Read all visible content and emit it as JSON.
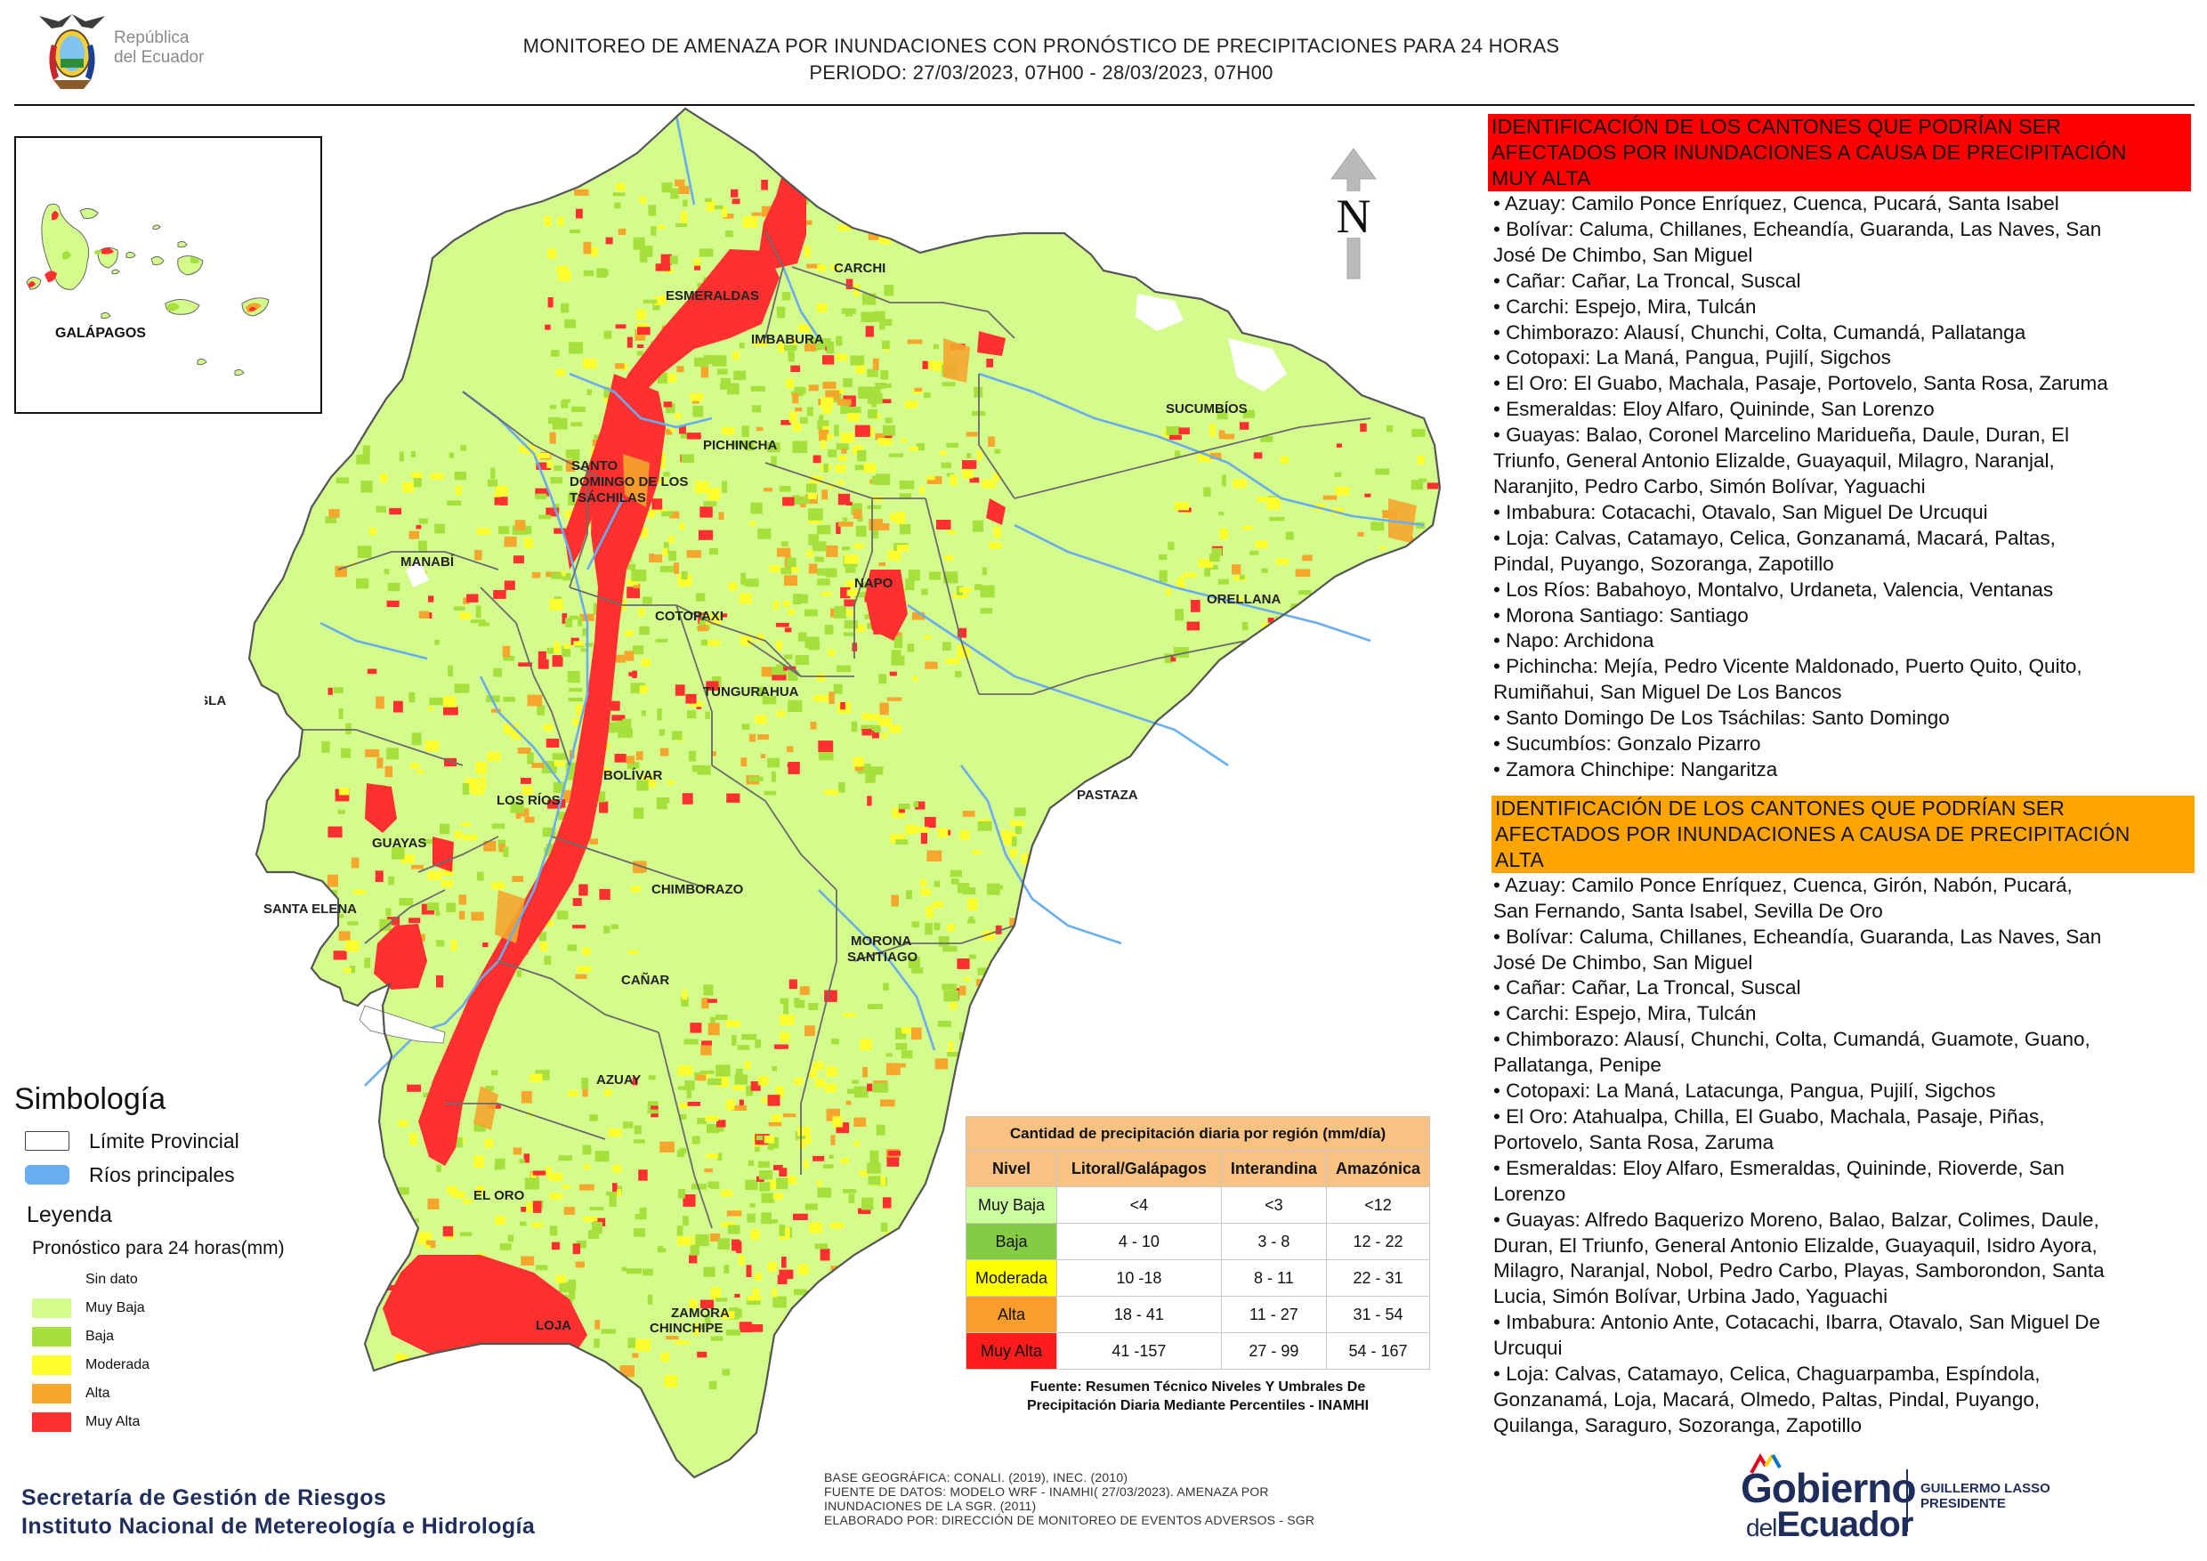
{
  "header": {
    "republic_line1": "República",
    "republic_line2": "del Ecuador",
    "title_line1": "MONITOREO DE AMENAZA POR INUNDACIONES  CON PRONÓSTICO DE  PRECIPITACIONES PARA 24 HORAS",
    "title_line2": "PERIODO: 27/03/2023, 07H00 - 28/03/2023, 07H00"
  },
  "inset": {
    "label": "GALÁPAGOS"
  },
  "north_arrow": {
    "label": "N"
  },
  "map_labels": {
    "carchi": "CARCHI",
    "esmeraldas": "ESMERALDAS",
    "imbabura": "IMBABURA",
    "sucumbios": "SUCUMBÍOS",
    "pichincha": "PICHINCHA",
    "santo_domingo_1": "SANTO",
    "santo_domingo_2": "DOMINGO DE LOS",
    "santo_domingo_3": "TSÁCHILAS",
    "manabi": "MANABÍ",
    "napo": "NAPO",
    "orellana": "ORELLANA",
    "cotopaxi": "COTOPAXI",
    "isla": "ISLA",
    "tungurahua": "TUNGURAHUA",
    "bolivar": "BOLÍVAR",
    "los_rios": "LOS RÍOS",
    "pastaza": "PASTAZA",
    "guayas": "GUAYAS",
    "santa_elena": "SANTA ELENA",
    "chimborazo": "CHIMBORAZO",
    "morona_1": "MORONA",
    "morona_2": "SANTIAGO",
    "canar": "CAÑAR",
    "azuay": "AZUAY",
    "el_oro": "EL ORO",
    "loja": "LOJA",
    "zamora_1": "ZAMORA",
    "zamora_2": "CHINCHIPE"
  },
  "simbologia": {
    "title": "Simbología",
    "limite": "Límite Provincial",
    "rios": "Ríos principales",
    "leyenda": "Leyenda",
    "pronostico": "Pronóstico para 24 horas(mm)",
    "classes": [
      {
        "label": "Sin dato",
        "color": "#ffffff"
      },
      {
        "label": "Muy Baja",
        "color": "#d3fc8c"
      },
      {
        "label": "Baja",
        "color": "#a6e03c"
      },
      {
        "label": "Moderada",
        "color": "#ffff2e"
      },
      {
        "label": "Alta",
        "color": "#f5a62d"
      },
      {
        "label": "Muy Alta",
        "color": "#ff3030"
      }
    ],
    "river_color": "#6aacf0"
  },
  "precip_table": {
    "caption": "Cantidad de precipitación diaria por región (mm/día)",
    "headers": [
      "Nivel",
      "Litoral/Galápagos",
      "Interandina",
      "Amazónica"
    ],
    "rows": [
      {
        "nivel": "Muy Baja",
        "litoral": "<4",
        "interandina": "<3",
        "amazonica": "<12",
        "color": "#ccffa0"
      },
      {
        "nivel": "Baja",
        "litoral": "4 - 10",
        "interandina": "3 - 8",
        "amazonica": "12 - 22",
        "color": "#84cc44"
      },
      {
        "nivel": "Moderada",
        "litoral": "10 -18",
        "interandina": "8 - 11",
        "amazonica": "22 - 31",
        "color": "#ffff00"
      },
      {
        "nivel": "Alta",
        "litoral": "18 - 41",
        "interandina": "11 - 27",
        "amazonica": "31 - 54",
        "color": "#fb9d2c"
      },
      {
        "nivel": "Muy Alta",
        "litoral": "41 -157",
        "interandina": "27 - 99",
        "amazonica": "54 - 167",
        "color": "#ff1c1c"
      }
    ],
    "source_line1": "Fuente: Resumen Técnico Niveles Y Umbrales De",
    "source_line2": "Precipitación Diaria Mediante Percentiles - INAMHI"
  },
  "section_muy_alta": {
    "heading_lines": [
      "IDENTIFICACIÓN DE LOS CANTONES QUE PODRÍAN SER",
      "AFECTADOS POR INUNDACIONES  A CAUSA DE PRECIPITACIÓN",
      "MUY ALTA"
    ],
    "heading_color": "#ff0000",
    "lines": [
      "• Azuay: Camilo Ponce Enríquez, Cuenca, Pucará, Santa Isabel",
      "• Bolívar: Caluma, Chillanes, Echeandía, Guaranda, Las Naves, San",
      "José De Chimbo, San Miguel",
      "• Cañar: Cañar, La Troncal, Suscal",
      "• Carchi: Espejo, Mira, Tulcán",
      "• Chimborazo: Alausí, Chunchi, Colta, Cumandá, Pallatanga",
      "• Cotopaxi: La Maná, Pangua, Pujilí, Sigchos",
      "• El Oro: El Guabo, Machala, Pasaje, Portovelo, Santa Rosa, Zaruma",
      "• Esmeraldas: Eloy Alfaro, Quininde, San Lorenzo",
      "• Guayas: Balao, Coronel Marcelino Maridueña, Daule, Duran, El",
      "Triunfo, General Antonio Elizalde, Guayaquil, Milagro, Naranjal,",
      "Naranjito, Pedro Carbo, Simón Bolívar, Yaguachi",
      "• Imbabura: Cotacachi, Otavalo, San Miguel De Urcuqui",
      "• Loja: Calvas, Catamayo, Celica, Gonzanamá, Macará, Paltas,",
      "Pindal, Puyango, Sozoranga, Zapotillo",
      "• Los Ríos: Babahoyo, Montalvo, Urdaneta, Valencia, Ventanas",
      "• Morona Santiago: Santiago",
      "• Napo: Archidona",
      "• Pichincha: Mejía, Pedro Vicente Maldonado, Puerto Quito, Quito,",
      "Rumiñahui, San Miguel De Los Bancos",
      "• Santo Domingo De Los Tsáchilas: Santo Domingo",
      "• Sucumbíos: Gonzalo Pizarro",
      "• Zamora Chinchipe: Nangaritza"
    ]
  },
  "section_alta": {
    "heading_lines": [
      "IDENTIFICACIÓN DE LOS CANTONES QUE  PODRÍAN SER",
      "AFECTADOS POR INUNDACIONES  A CAUSA DE PRECIPITACIÓN",
      "ALTA"
    ],
    "heading_color": "#ffa400",
    "lines": [
      "• Azuay: Camilo Ponce Enríquez, Cuenca, Girón, Nabón, Pucará,",
      "San Fernando, Santa Isabel, Sevilla De Oro",
      "• Bolívar: Caluma, Chillanes, Echeandía, Guaranda, Las Naves, San",
      "José De Chimbo, San Miguel",
      "• Cañar: Cañar, La Troncal, Suscal",
      "• Carchi: Espejo, Mira, Tulcán",
      "• Chimborazo: Alausí, Chunchi, Colta, Cumandá, Guamote, Guano,",
      "Pallatanga, Penipe",
      "• Cotopaxi: La Maná, Latacunga, Pangua, Pujilí, Sigchos",
      "• El Oro: Atahualpa, Chilla, El Guabo, Machala, Pasaje, Piñas,",
      "Portovelo, Santa Rosa, Zaruma",
      "• Esmeraldas: Eloy Alfaro, Esmeraldas, Quininde, Rioverde, San",
      "Lorenzo",
      "• Guayas: Alfredo Baquerizo Moreno, Balao, Balzar, Colimes, Daule,",
      "Duran, El Triunfo, General Antonio Elizalde, Guayaquil, Isidro Ayora,",
      "Milagro, Naranjal, Nobol, Pedro Carbo, Playas, Samborondon, Santa",
      "Lucia, Simón Bolívar, Urbina Jado, Yaguachi",
      "• Imbabura: Antonio Ante, Cotacachi, Ibarra, Otavalo, San Miguel De",
      "Urcuqui",
      "• Loja: Calvas, Catamayo, Celica, Chaguarpamba, Espíndola,",
      "Gonzanamá, Loja, Macará, Olmedo, Paltas, Pindal, Puyango,",
      "Quilanga, Saraguro, Sozoranga, Zapotillo"
    ]
  },
  "footer": {
    "sgr_line1": "Secretaría de Gestión de Riesgos",
    "sgr_line2": "Instituto Nacional de Metereología e Hidrología",
    "base_lines": [
      "BASE GEOGRÁFICA: CONALI. (2019), INEC. (2010)",
      "FUENTE DE DATOS: MODELO WRF - INAMHI( 27/03/2023).  AMENAZA POR",
      "INUNDACIONES DE LA SGR. (2011)",
      "ELABORADO POR: DIRECCIÓN DE MONITOREO DE EVENTOS ADVERSOS - SGR"
    ],
    "gob_word1": "Gobierno",
    "gob_word2_small": "del",
    "gob_word2_big": "Ecuador",
    "president_line1": "GUILLERMO LASSO",
    "president_line2": "PRESIDENTE"
  }
}
